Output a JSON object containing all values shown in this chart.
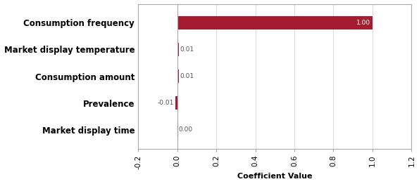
{
  "categories": [
    "Market display time",
    "Prevalence",
    "Consumption amount",
    "Market display temperature",
    "Consumption frequency"
  ],
  "values": [
    0.0,
    -0.01,
    0.01,
    0.01,
    1.0
  ],
  "bar_color": "#A51C30",
  "bar_color_light": "#C0383A",
  "xlim": [
    -0.2,
    1.2
  ],
  "xticks": [
    -0.2,
    0.0,
    0.2,
    0.4,
    0.6,
    0.8,
    1.0,
    1.2
  ],
  "xlabel": "Coefficient Value",
  "xlabel_fontsize": 8,
  "tick_label_fontsize": 7.5,
  "category_fontsize": 8.5,
  "value_label_fontsize": 6.5,
  "background_color": "#FFFFFF",
  "bar_height": 0.5,
  "spine_color": "#AAAAAA",
  "grid_color": "#DDDDDD"
}
